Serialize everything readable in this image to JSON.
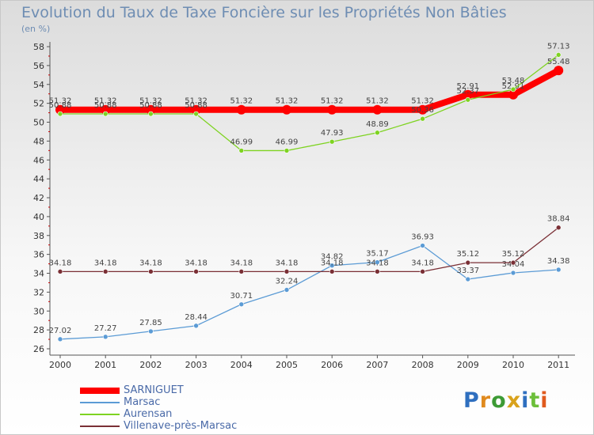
{
  "title": "Evolution du Taux de Taxe Foncière sur les Propriétés Non Bâties",
  "unit_label": "(en %)",
  "logo_text": "Proxiti",
  "chart_data": {
    "type": "line",
    "x": [
      "2000",
      "2001",
      "2002",
      "2003",
      "2004",
      "2005",
      "2006",
      "2007",
      "2008",
      "2009",
      "2010",
      "2011"
    ],
    "ylim": [
      26,
      58
    ],
    "yticks": [
      26,
      28,
      30,
      32,
      34,
      36,
      38,
      40,
      42,
      44,
      46,
      48,
      50,
      52,
      54,
      56,
      58
    ],
    "grid": false,
    "legend_position": "bottom-left",
    "series": [
      {
        "name": "SARNIGUET",
        "color": "#ff0000",
        "values": [
          51.32,
          51.32,
          51.32,
          51.32,
          51.32,
          51.32,
          51.32,
          51.32,
          51.32,
          52.91,
          52.91,
          55.48
        ],
        "labels": [
          "51.32",
          "51.32",
          "51.32",
          "51.32",
          "51.32",
          "51.32",
          "51.32",
          "51.32",
          "51.32",
          "52.91",
          "52.91",
          "55.48"
        ]
      },
      {
        "name": "Marsac",
        "color": "#5b9bd5",
        "values": [
          27.02,
          27.27,
          27.85,
          28.44,
          30.71,
          32.24,
          34.82,
          35.17,
          36.93,
          33.37,
          34.04,
          34.38
        ],
        "labels": [
          "27.02",
          "27.27",
          "27.85",
          "28.44",
          "30.71",
          "32.24",
          "34.82",
          "35.17",
          "36.93",
          "33.37",
          "34.04",
          "34.38"
        ]
      },
      {
        "name": "Aurensan",
        "color": "#7ed321",
        "values": [
          50.88,
          50.88,
          50.88,
          50.88,
          46.99,
          46.99,
          47.93,
          48.89,
          50.36,
          52.37,
          53.48,
          57.13
        ],
        "labels": [
          "50.88",
          "50.88",
          "50.88",
          "50.88",
          "46.99",
          "46.99",
          "47.93",
          "48.89",
          "50.36",
          "52.37",
          "53.48",
          "57.13"
        ]
      },
      {
        "name": "Villenave-près-Marsac",
        "color": "#7a2f35",
        "values": [
          34.18,
          34.18,
          34.18,
          34.18,
          34.18,
          34.18,
          34.18,
          34.18,
          34.18,
          35.12,
          35.12,
          38.84
        ],
        "labels": [
          "34.18",
          "34.18",
          "34.18",
          "34.18",
          "34.18",
          "34.18",
          "34.18",
          "34.18",
          "34.18",
          "35.12",
          "35.12",
          "38.84"
        ]
      }
    ]
  }
}
